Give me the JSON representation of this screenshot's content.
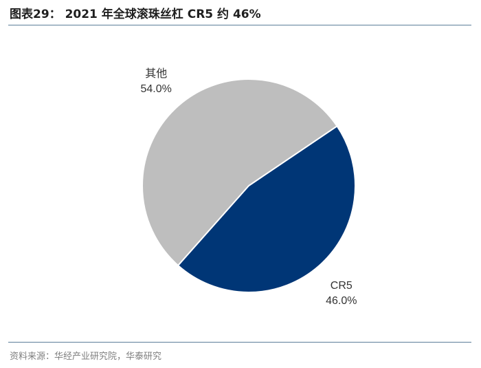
{
  "title": "图表29： 2021 年全球滚珠丝杠 CR5 约 46%",
  "source": "资料来源：华经产业研究院，华泰研究",
  "chart_data": {
    "type": "pie",
    "title": "图表29： 2021 年全球滚珠丝杠 CR5 约 46%",
    "slices": [
      {
        "label": "CR5",
        "value": 46.0,
        "display": "46.0%",
        "color": "#003676"
      },
      {
        "label": "其他",
        "value": 54.0,
        "display": "54.0%",
        "color": "#bebebe"
      }
    ],
    "legend": "none",
    "start_angle_deg": 56,
    "direction": "clockwise"
  }
}
